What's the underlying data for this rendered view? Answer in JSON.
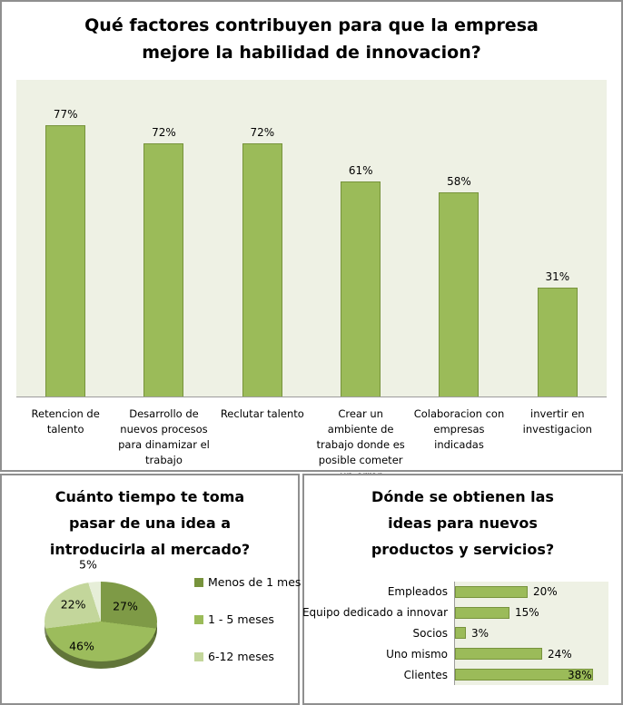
{
  "colors": {
    "accent_green": "#9BBB59",
    "accent_green_border": "#77933C",
    "accent_green_dark": "#4F6228",
    "accent_green_light": "#C3D69B",
    "plot_background": "#EEF1E4",
    "panel_border": "#8F8F8F",
    "axis_line": "#9C9C9C",
    "text": "#000000"
  },
  "chart_data": [
    {
      "id": "factors",
      "type": "bar",
      "title": "Qué factores contribuyen para que la empresa mejore la habilidad de innovacion?",
      "title_lines": [
        "Qué factores contribuyen para que la empresa",
        "mejore la habilidad de innovacion?"
      ],
      "categories": [
        "Retencion de talento",
        "Desarrollo de nuevos procesos para dinamizar el trabajo",
        "Reclutar talento",
        "Crear un ambiente de trabajo donde es posible cometer un error",
        "Colaboracion con empresas indicadas",
        "invertir en investigacion"
      ],
      "values": [
        77,
        72,
        72,
        61,
        58,
        31
      ],
      "value_labels": [
        "77%",
        "72%",
        "72%",
        "61%",
        "58%",
        "31%"
      ],
      "xlabel": "",
      "ylabel": "",
      "ylim": [
        0,
        90
      ],
      "grid": false,
      "legend_position": "none",
      "bar_color": "#9BBB59",
      "bar_border": "#77933C"
    },
    {
      "id": "time_to_market",
      "type": "pie",
      "title": "Cuánto tiempo te toma pasar de una idea a introducirla al mercado?",
      "title_lines": [
        "Cuánto tiempo te toma",
        "pasar de una idea a",
        "introducirla al mercado?"
      ],
      "slices": [
        {
          "label": "Menos de 1 mes",
          "value": 27,
          "value_label": "27%",
          "color": "#7E9A46"
        },
        {
          "label": "1 - 5 meses",
          "value": 46,
          "value_label": "46%",
          "color": "#9CBC5C"
        },
        {
          "label": "6-12 meses",
          "value": 22,
          "value_label": "22%",
          "color": "#C3D69B"
        },
        {
          "label": "",
          "value": 5,
          "value_label": "5%",
          "color": "#E6EED8"
        }
      ],
      "legend": [
        {
          "label": "Menos de 1 mes",
          "color": "#77933C"
        },
        {
          "label": "1 - 5 meses",
          "color": "#9BBB59"
        },
        {
          "label": "6-12 meses",
          "color": "#C3D69B"
        }
      ],
      "legend_position": "right",
      "effect": "3d"
    },
    {
      "id": "idea_sources",
      "type": "bar-horizontal",
      "title": "Dónde se obtienen las ideas para nuevos productos y servicios?",
      "title_lines": [
        "Dónde se obtienen las",
        "ideas para nuevos",
        "productos y servicios?"
      ],
      "categories": [
        "Empleados",
        "Equipo dedicado a innovar",
        "Socios",
        "Uno mismo",
        "Clientes"
      ],
      "values": [
        20,
        15,
        3,
        24,
        38
      ],
      "value_labels": [
        "20%",
        "15%",
        "3%",
        "24%",
        "38%"
      ],
      "xlim": [
        0,
        40
      ],
      "grid": false,
      "legend_position": "none",
      "bar_color": "#9BBB59",
      "bar_border": "#77933C"
    }
  ]
}
